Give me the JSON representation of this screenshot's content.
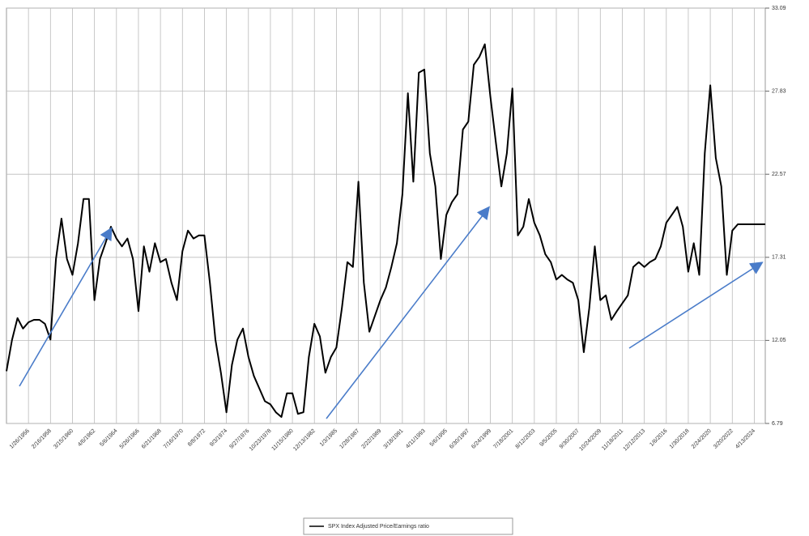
{
  "chart_data": {
    "type": "line",
    "categories": [
      null,
      null,
      null,
      null,
      "1/26/1956",
      null,
      null,
      null,
      "2/16/1958",
      null,
      null,
      null,
      "3/15/1960",
      null,
      null,
      null,
      "4/6/1962",
      null,
      null,
      null,
      "5/6/1964",
      null,
      null,
      null,
      "5/26/1966",
      null,
      null,
      null,
      "6/21/1968",
      null,
      null,
      null,
      "7/16/1970",
      null,
      null,
      null,
      "8/8/1972",
      null,
      null,
      null,
      "9/3/1974",
      null,
      null,
      null,
      "9/27/1976",
      null,
      null,
      null,
      "10/23/1978",
      null,
      null,
      null,
      "11/15/1980",
      null,
      null,
      null,
      "12/13/1982",
      null,
      null,
      null,
      "1/3/1985",
      null,
      null,
      null,
      "1/28/1987",
      null,
      null,
      null,
      "2/22/1989",
      null,
      null,
      null,
      "3/18/1991",
      null,
      null,
      null,
      "4/11/1993",
      null,
      null,
      null,
      "5/6/1995",
      null,
      null,
      null,
      "6/30/1997",
      null,
      null,
      null,
      "6/24/1999",
      null,
      null,
      null,
      "7/18/2001",
      null,
      null,
      null,
      "8/12/2003",
      null,
      null,
      null,
      "9/5/2005",
      null,
      null,
      null,
      "9/30/2007",
      null,
      null,
      null,
      "10/24/2009",
      null,
      null,
      null,
      "11/18/2011",
      null,
      null,
      null,
      "12/12/2013",
      null,
      null,
      null,
      "1/6/2016",
      null,
      null,
      null,
      "1/30/2018",
      null,
      null,
      null,
      "2/24/2020",
      null,
      null,
      null,
      "3/20/2022",
      null,
      null,
      null,
      "4/13/2024",
      null,
      null
    ],
    "series": [
      {
        "name": "SPX Index Adjusted Price/Earnings ratio",
        "color": "#000000",
        "values": [
          10.1,
          12.07,
          13.46,
          12.8,
          13.2,
          13.35,
          13.35,
          13.1,
          12.1,
          17.2,
          19.76,
          17.2,
          16.2,
          18.2,
          21.0,
          21.0,
          14.6,
          17.2,
          18.2,
          19.25,
          18.5,
          18.0,
          18.5,
          17.2,
          13.9,
          18.0,
          16.4,
          18.2,
          17.0,
          17.2,
          15.7,
          14.6,
          17.7,
          19.0,
          18.5,
          18.7,
          18.7,
          15.7,
          12.1,
          10.0,
          7.5,
          10.5,
          12.1,
          12.8,
          11.0,
          9.8,
          9.0,
          8.2,
          8.0,
          7.5,
          7.2,
          8.7,
          8.7,
          7.4,
          7.5,
          11.0,
          13.1,
          12.3,
          10.0,
          11.0,
          11.6,
          14.1,
          17.0,
          16.7,
          22.1,
          15.7,
          12.6,
          13.6,
          14.6,
          15.4,
          16.7,
          18.2,
          21.3,
          27.7,
          22.1,
          29.0,
          29.2,
          23.9,
          21.8,
          17.2,
          20.0,
          20.8,
          21.3,
          25.4,
          25.9,
          29.5,
          30.0,
          30.8,
          27.5,
          24.6,
          21.8,
          23.9,
          28.0,
          18.7,
          19.25,
          21.0,
          19.5,
          18.7,
          17.5,
          17.0,
          15.9,
          16.2,
          15.9,
          15.7,
          14.6,
          11.3,
          14.1,
          18.0,
          14.6,
          14.9,
          13.35,
          13.9,
          14.4,
          14.9,
          16.7,
          17.0,
          16.7,
          17.0,
          17.2,
          18.0,
          19.5,
          20.0,
          20.5,
          19.25,
          16.4,
          18.2,
          16.2,
          23.9,
          28.2,
          23.6,
          21.8,
          16.2,
          19.0,
          19.4,
          19.4,
          19.4,
          19.4,
          19.4,
          19.4
        ]
      }
    ],
    "ylim": [
      6.79,
      33.09
    ],
    "yticks": [
      6.79,
      12.05,
      17.31,
      22.57,
      27.83,
      33.09
    ],
    "grid": true
  }
}
